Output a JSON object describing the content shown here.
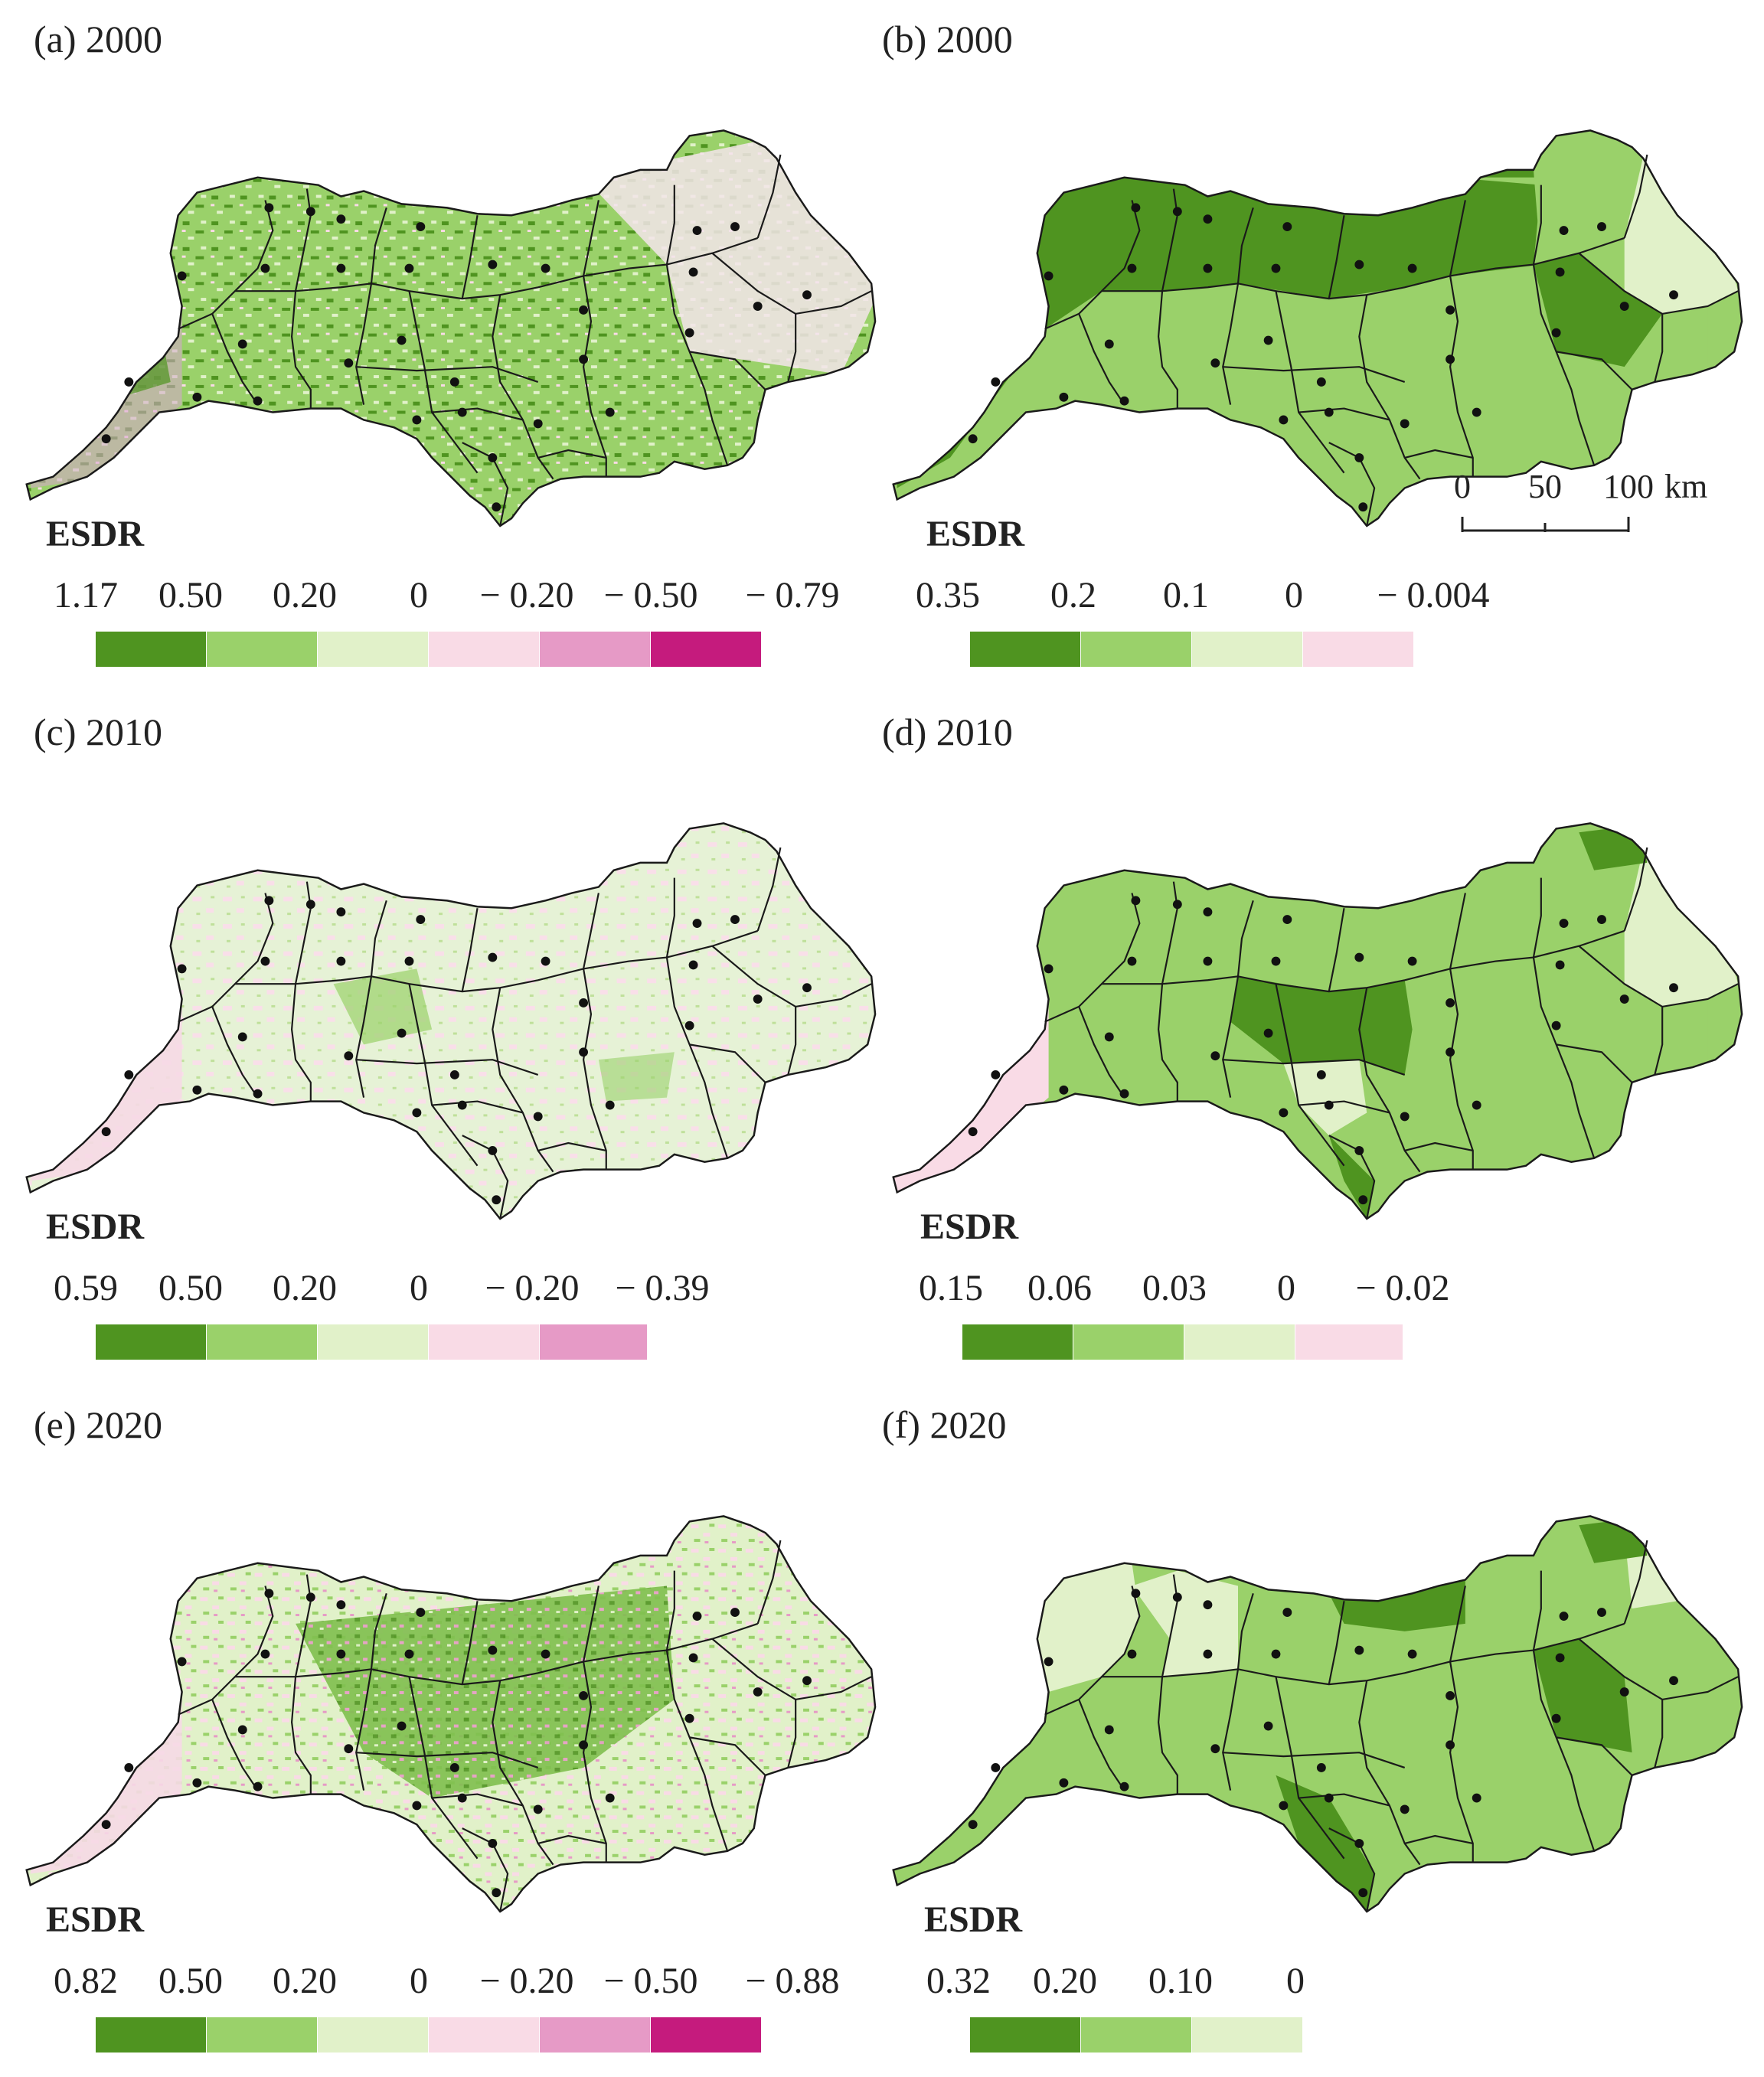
{
  "panels": [
    {
      "id": "a",
      "title": "(a) 2000",
      "style": "raster",
      "legend_title": "ESDR",
      "ticks": [
        "1.17",
        "0.50",
        "0.20",
        "0",
        "− 0.20",
        "− 0.50",
        "− 0.79"
      ],
      "colors": [
        "#4f9420",
        "#9ad16a",
        "#e1f1c9",
        "#f9dbe6",
        "#e69ac6",
        "#c51b7d"
      ]
    },
    {
      "id": "b",
      "title": "(b) 2000",
      "style": "choropleth",
      "legend_title": "ESDR",
      "ticks": [
        "0.35",
        "0.2",
        "0.1",
        "0",
        "− 0.004"
      ],
      "colors": [
        "#4f9420",
        "#9ad16a",
        "#e1f1c9",
        "#f9dbe6"
      ]
    },
    {
      "id": "c",
      "title": "(c) 2010",
      "style": "raster",
      "legend_title": "ESDR",
      "ticks": [
        "0.59",
        "0.50",
        "0.20",
        "0",
        "− 0.20",
        "− 0.39"
      ],
      "colors": [
        "#4f9420",
        "#9ad16a",
        "#e1f1c9",
        "#f9dbe6",
        "#e69ac6"
      ]
    },
    {
      "id": "d",
      "title": "(d) 2010",
      "style": "choropleth",
      "legend_title": "ESDR",
      "ticks": [
        "0.15",
        "0.06",
        "0.03",
        "0",
        "− 0.02"
      ],
      "colors": [
        "#4f9420",
        "#9ad16a",
        "#e1f1c9",
        "#f9dbe6"
      ]
    },
    {
      "id": "e",
      "title": "(e) 2020",
      "style": "raster",
      "legend_title": "ESDR",
      "ticks": [
        "0.82",
        "0.50",
        "0.20",
        "0",
        "− 0.20",
        "− 0.50",
        "− 0.88"
      ],
      "colors": [
        "#4f9420",
        "#9ad16a",
        "#e1f1c9",
        "#f9dbe6",
        "#e69ac6",
        "#c51b7d"
      ]
    },
    {
      "id": "f",
      "title": "(f) 2020",
      "style": "choropleth",
      "legend_title": "ESDR",
      "ticks": [
        "0.32",
        "0.20",
        "0.10",
        "0"
      ],
      "colors": [
        "#4f9420",
        "#9ad16a",
        "#e1f1c9"
      ]
    }
  ],
  "scale_bar": {
    "labels": [
      "0",
      "50",
      "100"
    ],
    "unit": "km"
  }
}
